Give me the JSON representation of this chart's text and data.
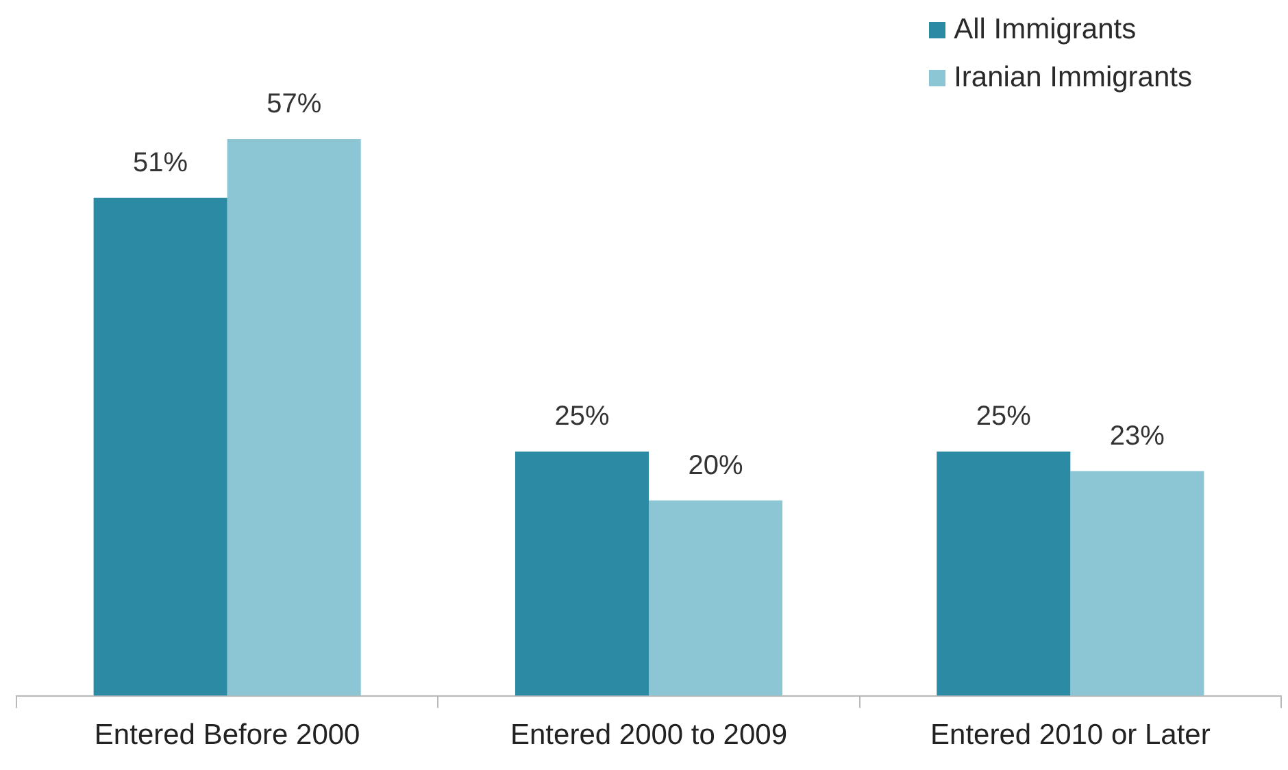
{
  "chart_data": {
    "type": "bar",
    "categories": [
      "Entered Before 2000",
      "Entered 2000 to 2009",
      "Entered 2010 or Later"
    ],
    "series": [
      {
        "name": "All Immigrants",
        "color": "#2b8ba4",
        "values": [
          51,
          25,
          25
        ],
        "value_labels": [
          "51%",
          "25%",
          "25%"
        ]
      },
      {
        "name": "Iranian Immigrants",
        "color": "#8cc5d3",
        "values": [
          57,
          20,
          23
        ],
        "value_labels": [
          "57%",
          "20%",
          "23%"
        ]
      }
    ],
    "legend": "top right",
    "tick_labels": "x"
  }
}
